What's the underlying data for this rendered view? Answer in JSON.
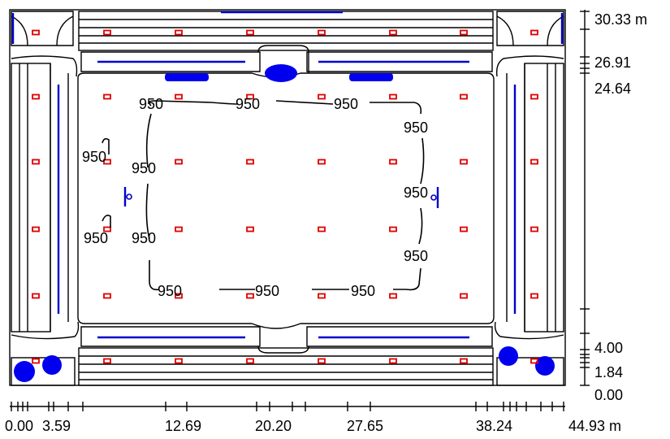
{
  "diagram": {
    "type": "illuminance-isoline-plan",
    "contour_value_label": "950",
    "x_axis": {
      "labels": [
        "0.00",
        "3.59",
        "12.69",
        "20.20",
        "27.65",
        "38.24",
        "44.93 m"
      ]
    },
    "y_axis": {
      "labels": [
        "30.33 m",
        "26.91",
        "24.64",
        "4.00",
        "1.84",
        "0.00"
      ]
    },
    "colors": {
      "outline": "#000000",
      "luminaire": "#e00000",
      "fixture": "#0000cc"
    }
  }
}
